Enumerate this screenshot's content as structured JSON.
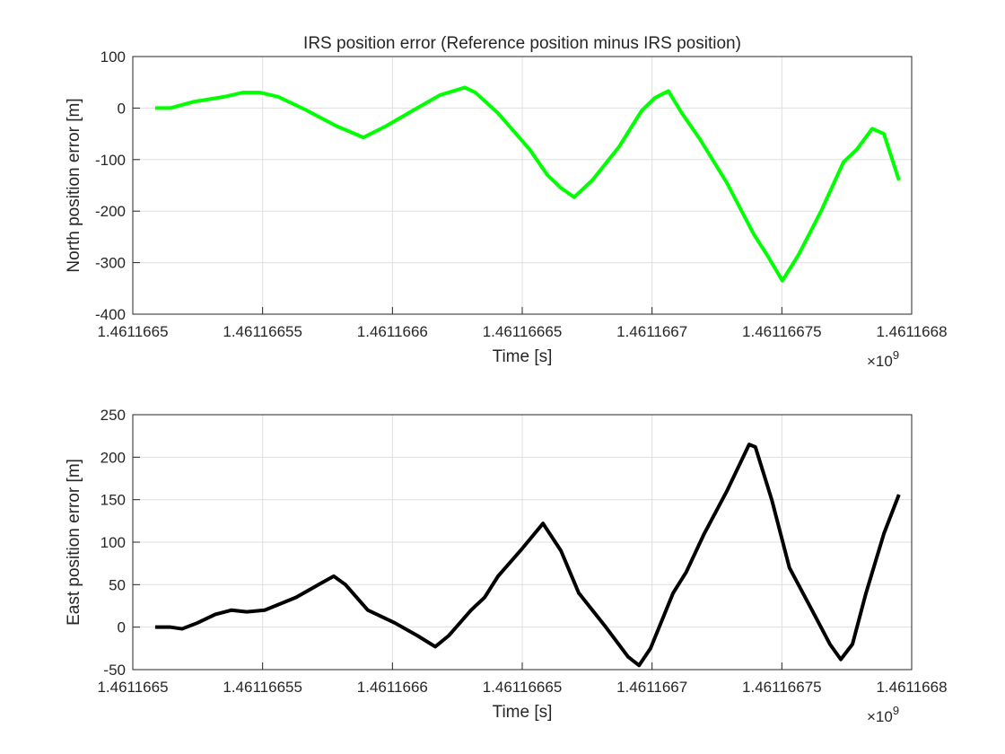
{
  "chart_data": [
    {
      "type": "line",
      "title": "IRS position error (Reference position minus IRS position)",
      "xlabel": "Time [s]",
      "ylabel": "North position error [m]",
      "x_exponent": {
        "base": "×10",
        "power": 9
      },
      "x": [
        1461166508.6,
        1461166514.5,
        1461166518.0,
        1461166523.2,
        1461166535.3,
        1461166542.2,
        1461166549.1,
        1461166556.0,
        1461166566.4,
        1461166578.5,
        1461166588.8,
        1461166597.5,
        1461166607.8,
        1461166618.2,
        1461166623.4,
        1461166627.9,
        1461166632.0,
        1461166640.7,
        1461166652.8,
        1461166659.7,
        1461166664.9,
        1461166670.0,
        1461166677.0,
        1461166687.3,
        1461166696.0,
        1461166701.1,
        1461166706.3,
        1461166711.5,
        1461166718.4,
        1461166728.8,
        1461166739.2,
        1461166744.3,
        1461166750.2,
        1461166756.4,
        1461166765.1,
        1461166773.7,
        1461166778.9,
        1461166784.8,
        1461166789.3,
        1461166795.1
      ],
      "values": [
        0,
        0,
        5,
        12,
        22,
        30,
        30,
        22,
        -3,
        -35,
        -57,
        -35,
        -5,
        25,
        33,
        40,
        30,
        -10,
        -80,
        -130,
        -155,
        -173,
        -140,
        -75,
        -5,
        20,
        33,
        -10,
        -60,
        -145,
        -245,
        -285,
        -335,
        -285,
        -200,
        -105,
        -80,
        -40,
        -50,
        -140
      ],
      "color": "#00ff00",
      "xlim": [
        1461166500,
        1461166800
      ],
      "xticks": [
        {
          "value": 1461166500,
          "label": "1.4611665"
        },
        {
          "value": 1461166550,
          "label": "1.46116655"
        },
        {
          "value": 1461166600,
          "label": "1.4611666"
        },
        {
          "value": 1461166650,
          "label": "1.46116665"
        },
        {
          "value": 1461166700,
          "label": "1.4611667"
        },
        {
          "value": 1461166750,
          "label": "1.46116675"
        },
        {
          "value": 1461166800,
          "label": "1.4611668"
        }
      ],
      "ylim": [
        -400,
        100
      ],
      "yticks": [
        -400,
        -300,
        -200,
        -100,
        0,
        100
      ],
      "grid": true
    },
    {
      "type": "line",
      "xlabel": "Time [s]",
      "ylabel": "East position error [m]",
      "x_exponent": {
        "base": "×10",
        "power": 9
      },
      "x": [
        1461166508.6,
        1461166514.5,
        1461166519.0,
        1461166524.9,
        1461166531.8,
        1461166538.0,
        1461166543.9,
        1461166550.8,
        1461166562.9,
        1461166571.5,
        1461166577.4,
        1461166581.9,
        1461166590.5,
        1461166600.9,
        1461166609.6,
        1461166616.5,
        1461166621.7,
        1461166630.3,
        1461166635.5,
        1461166640.7,
        1461166649.3,
        1461166658.0,
        1461166664.9,
        1461166671.8,
        1461166682.2,
        1461166690.8,
        1461166695.0,
        1461166699.4,
        1461166708.1,
        1461166713.2,
        1461166720.1,
        1461166728.8,
        1461166737.4,
        1461166739.8,
        1461166746.1,
        1461166752.9,
        1461166761.6,
        1461166768.5,
        1461166772.7,
        1461166777.2,
        1461166782.4,
        1461166789.3,
        1461166795.1
      ],
      "values": [
        0,
        0,
        -2,
        5,
        15,
        20,
        18,
        20,
        35,
        50,
        60,
        50,
        20,
        5,
        -10,
        -23,
        -10,
        20,
        35,
        60,
        90,
        122,
        90,
        40,
        0,
        -35,
        -45,
        -25,
        40,
        65,
        110,
        160,
        215,
        212,
        150,
        70,
        20,
        -20,
        -38,
        -20,
        40,
        110,
        156
      ],
      "color": "#000000",
      "xlim": [
        1461166500,
        1461166800
      ],
      "xticks": [
        {
          "value": 1461166500,
          "label": "1.4611665"
        },
        {
          "value": 1461166550,
          "label": "1.46116655"
        },
        {
          "value": 1461166600,
          "label": "1.4611666"
        },
        {
          "value": 1461166650,
          "label": "1.46116665"
        },
        {
          "value": 1461166700,
          "label": "1.4611667"
        },
        {
          "value": 1461166750,
          "label": "1.46116675"
        },
        {
          "value": 1461166800,
          "label": "1.4611668"
        }
      ],
      "ylim": [
        -50,
        250
      ],
      "yticks": [
        -50,
        0,
        50,
        100,
        150,
        200,
        250
      ],
      "grid": true
    }
  ]
}
